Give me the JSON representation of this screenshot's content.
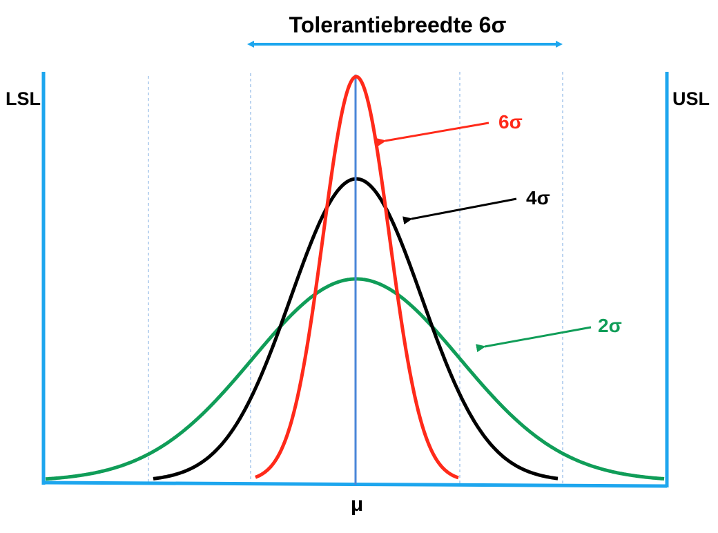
{
  "title": "Tolerantiebreedte 6σ",
  "lsl_label": "LSL",
  "usl_label": "USL",
  "mean_label": "μ",
  "curves": [
    {
      "label": "6σ",
      "color": "#ff2a1a"
    },
    {
      "label": "4σ",
      "color": "#000000"
    },
    {
      "label": "2σ",
      "color": "#109d58"
    }
  ],
  "colors": {
    "spec_limits": "#1da6ee",
    "mean_line": "#4a86d8",
    "sigma_gridlines": "#8fb8e6"
  }
}
